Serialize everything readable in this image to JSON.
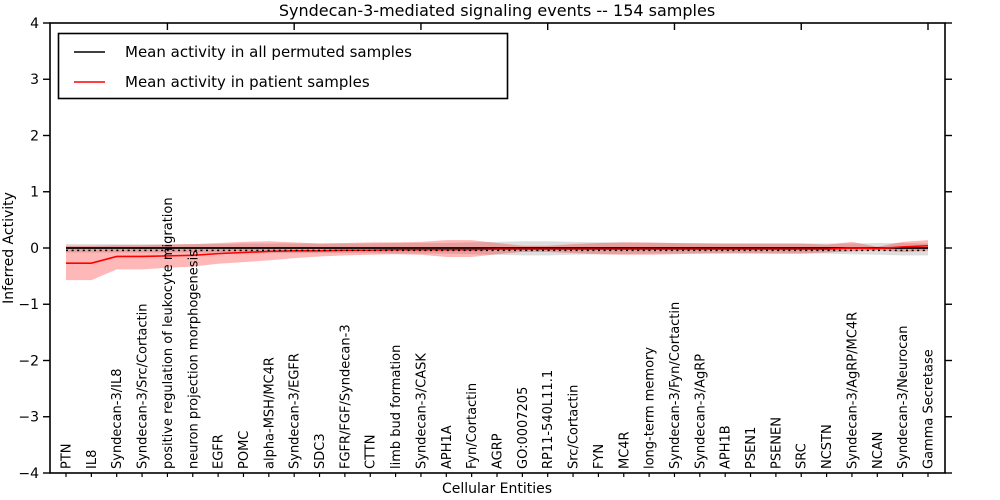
{
  "chart_data": {
    "type": "line",
    "title": "Syndecan-3-mediated signaling events -- 154 samples",
    "xlabel": "Cellular Entities",
    "ylabel": "Inferred Activity",
    "ylim": [
      -4,
      4
    ],
    "yticks": [
      -4,
      -3,
      -2,
      -1,
      0,
      1,
      2,
      3,
      4
    ],
    "grid": false,
    "legend": {
      "position": "upper left",
      "entries": [
        {
          "label": "Mean activity in all permuted samples",
          "color": "#000000"
        },
        {
          "label": "Mean activity in patient samples",
          "color": "#ff0000"
        }
      ]
    },
    "categories": [
      "PTN",
      "IL8",
      "Syndecan-3/IL8",
      "Syndecan-3/Src/Cortactin",
      "positive regulation of leukocyte migration",
      "neuron projection morphogenesis",
      "EGFR",
      "POMC",
      "alpha-MSH/MC4R",
      "Syndecan-3/EGFR",
      "SDC3",
      "FGFR/FGF/Syndecan-3",
      "CTTN",
      "limb bud formation",
      "Syndecan-3/CASK",
      "APH1A",
      "Fyn/Cortactin",
      "AGRP",
      "GO:0007205",
      "RP11-540L11.1",
      "Src/Cortactin",
      "FYN",
      "MC4R",
      "long-term memory",
      "Syndecan-3/Fyn/Cortactin",
      "Syndecan-3/AgRP",
      "APH1B",
      "PSEN1",
      "PSENEN",
      "SRC",
      "NCSTN",
      "Syndecan-3/AgRP/MC4R",
      "NCAN",
      "Syndecan-3/Neurocan",
      "Gamma Secretase"
    ],
    "series": [
      {
        "name": "Mean activity in all permuted samples",
        "color": "#000000",
        "values": [
          0,
          0,
          0,
          0,
          0,
          0,
          0,
          0,
          0,
          0,
          0,
          0,
          0,
          0,
          0,
          0,
          0,
          0,
          0,
          0,
          0,
          0,
          0,
          0,
          0,
          0,
          0,
          0,
          0,
          0,
          0,
          0,
          0,
          0,
          0
        ]
      },
      {
        "name": "Mean activity in patient samples",
        "color": "#ff0000",
        "values": [
          -0.27,
          -0.27,
          -0.15,
          -0.15,
          -0.14,
          -0.13,
          -0.1,
          -0.08,
          -0.06,
          -0.05,
          -0.05,
          -0.04,
          -0.04,
          -0.03,
          -0.03,
          -0.03,
          -0.03,
          -0.02,
          -0.02,
          -0.02,
          -0.02,
          -0.02,
          -0.02,
          -0.02,
          -0.02,
          -0.02,
          -0.02,
          -0.02,
          -0.02,
          -0.02,
          -0.02,
          0.0,
          -0.01,
          0.02,
          0.04
        ]
      }
    ],
    "bands": [
      {
        "name": "permuted-std-band",
        "color": "rgba(120,120,120,0.25)",
        "lower": [
          -0.08,
          -0.08,
          -0.08,
          -0.08,
          -0.08,
          -0.08,
          -0.08,
          -0.09,
          -0.09,
          -0.09,
          -0.09,
          -0.09,
          -0.09,
          -0.1,
          -0.1,
          -0.1,
          -0.11,
          -0.12,
          -0.13,
          -0.13,
          -0.12,
          -0.11,
          -0.11,
          -0.1,
          -0.1,
          -0.1,
          -0.09,
          -0.09,
          -0.1,
          -0.1,
          -0.1,
          -0.11,
          -0.12,
          -0.13,
          -0.13
        ],
        "upper": [
          0.07,
          0.07,
          0.07,
          0.07,
          0.07,
          0.07,
          0.07,
          0.08,
          0.08,
          0.08,
          0.08,
          0.08,
          0.08,
          0.09,
          0.09,
          0.09,
          0.1,
          0.11,
          0.12,
          0.12,
          0.11,
          0.1,
          0.1,
          0.09,
          0.09,
          0.09,
          0.08,
          0.08,
          0.08,
          0.08,
          0.08,
          0.08,
          0.09,
          0.09,
          0.08
        ]
      },
      {
        "name": "patient-std-band",
        "color": "rgba(255,0,0,0.28)",
        "lower": [
          -0.57,
          -0.57,
          -0.38,
          -0.38,
          -0.35,
          -0.33,
          -0.28,
          -0.25,
          -0.22,
          -0.18,
          -0.15,
          -0.13,
          -0.12,
          -0.11,
          -0.12,
          -0.16,
          -0.16,
          -0.11,
          -0.07,
          -0.07,
          -0.09,
          -0.11,
          -0.12,
          -0.12,
          -0.11,
          -0.1,
          -0.1,
          -0.1,
          -0.1,
          -0.1,
          -0.08,
          -0.06,
          -0.04,
          -0.07,
          -0.05
        ],
        "upper": [
          0.04,
          0.04,
          0.05,
          0.05,
          0.06,
          0.07,
          0.09,
          0.11,
          0.12,
          0.1,
          0.08,
          0.09,
          0.1,
          0.1,
          0.11,
          0.14,
          0.14,
          0.09,
          0.04,
          0.04,
          0.07,
          0.09,
          0.1,
          0.1,
          0.09,
          0.08,
          0.08,
          0.08,
          0.08,
          0.08,
          0.06,
          0.11,
          0.02,
          0.11,
          0.14
        ]
      }
    ],
    "reference_line": {
      "value": 0,
      "style": "dotted",
      "color": "#000000"
    },
    "colors": {
      "frame": "#000000",
      "background": "#ffffff"
    }
  }
}
